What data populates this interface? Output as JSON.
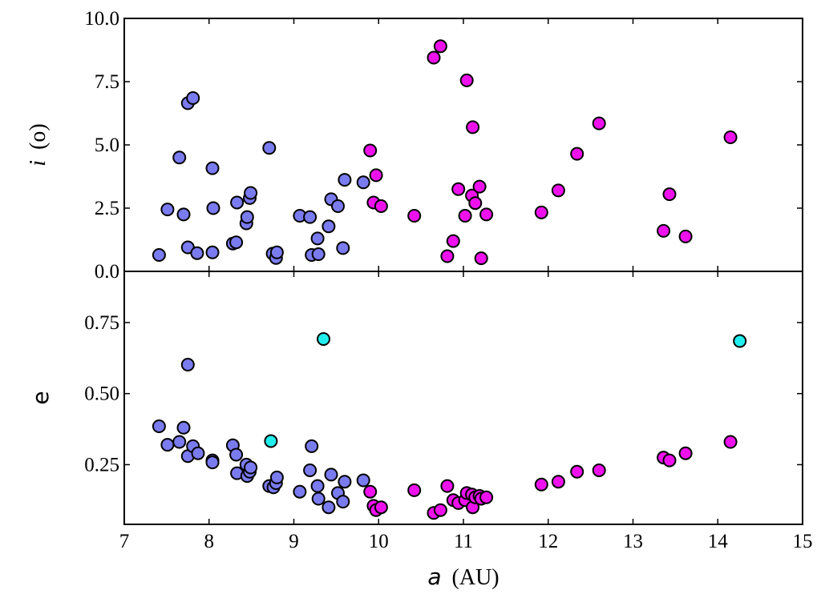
{
  "chart_data": [
    {
      "type": "scatter",
      "panel": "top",
      "ylabel": {
        "var": "i",
        "unit": "(o)"
      },
      "xlim": [
        7,
        15
      ],
      "ylim": [
        0,
        10
      ],
      "yticks": [
        "0.0",
        "2.5",
        "5.0",
        "7.5",
        "10.0"
      ],
      "series": [
        {
          "color": "#7b7bf0",
          "points": [
            [
              7.41,
              0.65
            ],
            [
              7.51,
              2.45
            ],
            [
              7.65,
              4.5
            ],
            [
              7.7,
              2.25
            ],
            [
              7.75,
              6.65
            ],
            [
              7.75,
              0.95
            ],
            [
              7.81,
              6.85
            ],
            [
              7.86,
              0.72
            ],
            [
              8.04,
              4.08
            ],
            [
              8.04,
              0.75
            ],
            [
              8.05,
              2.5
            ],
            [
              8.28,
              1.1
            ],
            [
              8.32,
              1.15
            ],
            [
              8.33,
              2.72
            ],
            [
              8.44,
              1.9
            ],
            [
              8.45,
              2.15
            ],
            [
              8.48,
              2.9
            ],
            [
              8.49,
              3.1
            ],
            [
              8.71,
              4.88
            ],
            [
              8.75,
              0.7
            ],
            [
              8.79,
              0.53
            ],
            [
              8.8,
              0.75
            ],
            [
              9.07,
              2.2
            ],
            [
              9.19,
              2.15
            ],
            [
              9.21,
              0.65
            ],
            [
              9.28,
              1.3
            ],
            [
              9.29,
              0.68
            ],
            [
              9.41,
              1.78
            ],
            [
              9.44,
              2.85
            ],
            [
              9.52,
              2.58
            ],
            [
              9.58,
              0.92
            ],
            [
              9.6,
              3.62
            ],
            [
              9.82,
              3.52
            ]
          ]
        },
        {
          "color": "#ee11ee",
          "points": [
            [
              9.9,
              4.78
            ],
            [
              9.94,
              2.72
            ],
            [
              9.97,
              3.8
            ],
            [
              10.03,
              2.58
            ],
            [
              10.42,
              2.2
            ],
            [
              10.65,
              8.45
            ],
            [
              10.73,
              8.9
            ],
            [
              10.81,
              0.6
            ],
            [
              10.88,
              1.2
            ],
            [
              10.94,
              3.25
            ],
            [
              11.02,
              2.2
            ],
            [
              11.04,
              7.55
            ],
            [
              11.11,
              5.7
            ],
            [
              11.1,
              3.0
            ],
            [
              11.14,
              2.7
            ],
            [
              11.19,
              3.35
            ],
            [
              11.21,
              0.52
            ],
            [
              11.27,
              2.25
            ],
            [
              11.92,
              2.33
            ],
            [
              12.12,
              3.2
            ],
            [
              12.34,
              4.65
            ],
            [
              12.6,
              5.85
            ],
            [
              13.36,
              1.6
            ],
            [
              13.43,
              3.05
            ],
            [
              13.62,
              1.38
            ],
            [
              14.15,
              5.3
            ]
          ]
        }
      ]
    },
    {
      "type": "scatter",
      "panel": "bottom",
      "ylabel": "e",
      "xlabel": {
        "var": "a",
        "unit": "(AU)"
      },
      "xlim": [
        7,
        15
      ],
      "ylim": [
        0.04,
        0.93
      ],
      "xticks": [
        "7",
        "8",
        "9",
        "10",
        "11",
        "12",
        "13",
        "14",
        "15"
      ],
      "yticks": [
        "0.25",
        "0.50",
        "0.75"
      ],
      "series": [
        {
          "color": "#7b7bf0",
          "points": [
            [
              7.41,
              0.385
            ],
            [
              7.51,
              0.32
            ],
            [
              7.65,
              0.33
            ],
            [
              7.7,
              0.38
            ],
            [
              7.75,
              0.28
            ],
            [
              7.75,
              0.602
            ],
            [
              7.81,
              0.315
            ],
            [
              7.87,
              0.29
            ],
            [
              8.04,
              0.265
            ],
            [
              8.04,
              0.258
            ],
            [
              8.28,
              0.318
            ],
            [
              8.32,
              0.285
            ],
            [
              8.33,
              0.22
            ],
            [
              8.44,
              0.25
            ],
            [
              8.45,
              0.21
            ],
            [
              8.48,
              0.225
            ],
            [
              8.49,
              0.24
            ],
            [
              8.71,
              0.175
            ],
            [
              8.76,
              0.17
            ],
            [
              8.79,
              0.185
            ],
            [
              8.8,
              0.205
            ],
            [
              9.07,
              0.155
            ],
            [
              9.19,
              0.23
            ],
            [
              9.21,
              0.315
            ],
            [
              9.28,
              0.175
            ],
            [
              9.29,
              0.13
            ],
            [
              9.41,
              0.1
            ],
            [
              9.44,
              0.215
            ],
            [
              9.52,
              0.15
            ],
            [
              9.58,
              0.12
            ],
            [
              9.6,
              0.19
            ],
            [
              9.82,
              0.195
            ]
          ]
        },
        {
          "color": "#ee11ee",
          "points": [
            [
              9.9,
              0.155
            ],
            [
              9.94,
              0.105
            ],
            [
              9.97,
              0.09
            ],
            [
              10.03,
              0.1
            ],
            [
              10.42,
              0.16
            ],
            [
              10.65,
              0.08
            ],
            [
              10.73,
              0.09
            ],
            [
              10.81,
              0.175
            ],
            [
              10.88,
              0.125
            ],
            [
              10.94,
              0.115
            ],
            [
              11.02,
              0.125
            ],
            [
              11.04,
              0.15
            ],
            [
              11.1,
              0.145
            ],
            [
              11.11,
              0.1
            ],
            [
              11.14,
              0.135
            ],
            [
              11.19,
              0.14
            ],
            [
              11.21,
              0.13
            ],
            [
              11.27,
              0.135
            ],
            [
              11.92,
              0.18
            ],
            [
              12.12,
              0.19
            ],
            [
              12.34,
              0.225
            ],
            [
              12.6,
              0.23
            ],
            [
              13.36,
              0.275
            ],
            [
              13.43,
              0.265
            ],
            [
              13.62,
              0.29
            ],
            [
              14.15,
              0.33
            ]
          ]
        },
        {
          "color": "#22eeee",
          "points": [
            [
              8.73,
              0.333
            ],
            [
              9.35,
              0.692
            ],
            [
              14.26,
              0.685
            ]
          ]
        }
      ]
    }
  ]
}
